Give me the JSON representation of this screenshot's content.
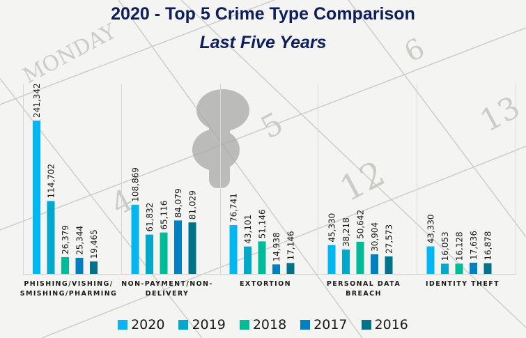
{
  "chart_data": {
    "type": "bar",
    "title": "2020 - Top 5 Crime Type Comparison",
    "subtitle": "Last Five Years",
    "xlabel": "",
    "ylabel": "",
    "ylim": [
      0,
      241342
    ],
    "grid": false,
    "legend_position": "bottom",
    "categories": [
      "PHISHING/VISHING/\nSMISHING/PHARMING",
      "NON-PAYMENT/NON-\nDELIVERY",
      "EXTORTION",
      "PERSONAL DATA\nBREACH",
      "IDENTITY THEFT"
    ],
    "series": [
      {
        "name": "2020",
        "color": "#00b7f1",
        "values": [
          241342,
          108869,
          76741,
          45330,
          43330
        ],
        "labels": [
          "241,342",
          "108,869",
          "76,741",
          "45,330",
          "43,330"
        ]
      },
      {
        "name": "2019",
        "color": "#00a9cc",
        "values": [
          114702,
          61832,
          43101,
          38218,
          16053
        ],
        "labels": [
          "114,702",
          "61,832",
          "43,101",
          "38,218",
          "16,053"
        ]
      },
      {
        "name": "2018",
        "color": "#00bb9a",
        "values": [
          26379,
          65116,
          51146,
          50642,
          16128
        ],
        "labels": [
          "26,379",
          "65,116",
          "51,146",
          "50,642",
          "16,128"
        ]
      },
      {
        "name": "2017",
        "color": "#0080c0",
        "values": [
          25344,
          84079,
          14938,
          30904,
          17636
        ],
        "labels": [
          "25,344",
          "84,079",
          "14,938",
          "30,904",
          "17,636"
        ]
      },
      {
        "name": "2016",
        "color": "#00738a",
        "values": [
          19465,
          81029,
          17146,
          27573,
          16878
        ],
        "labels": [
          "19,465",
          "81,029",
          "17,146",
          "27,573",
          "16,878"
        ]
      }
    ]
  },
  "colors": {
    "title": "#0e1e5b",
    "background": "#f4f4f3"
  }
}
